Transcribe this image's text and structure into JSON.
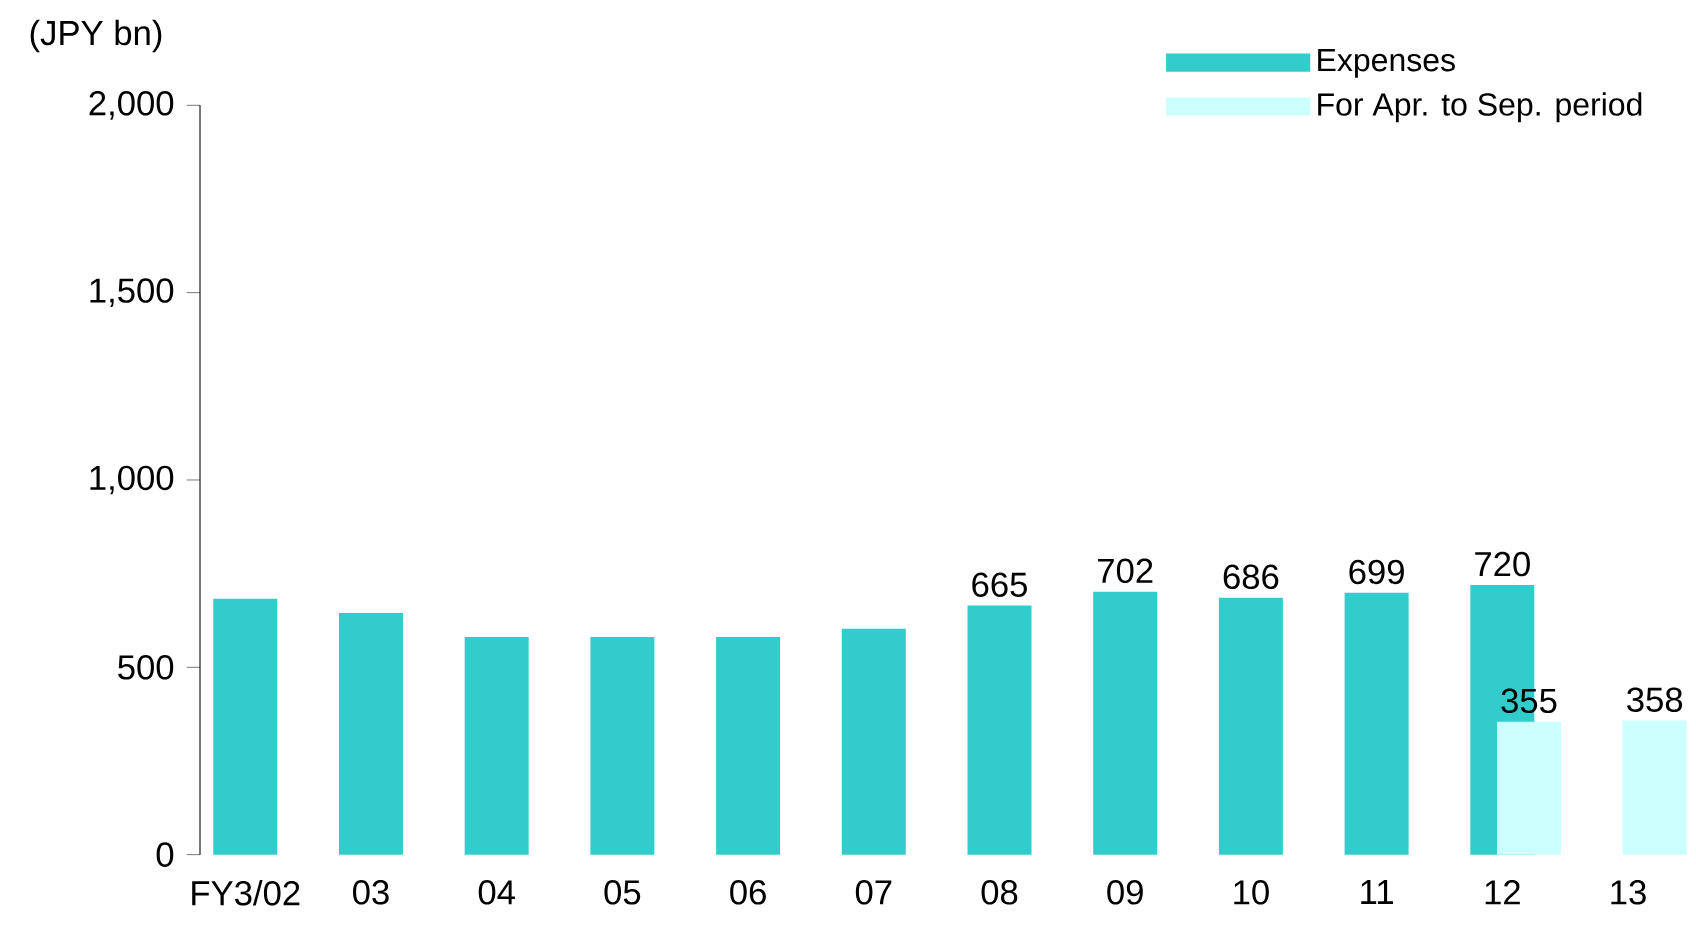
{
  "chart_data": {
    "type": "bar",
    "ylabel": "(JPY bn)",
    "categories": [
      "FY3/02",
      "03",
      "04",
      "05",
      "06",
      "07",
      "08",
      "09",
      "10",
      "11",
      "12",
      "13"
    ],
    "series": [
      {
        "name": "Expenses",
        "color": "#33cccc",
        "values": [
          683,
          645,
          581,
          581,
          581,
          603,
          665,
          702,
          686,
          699,
          720,
          null
        ],
        "value_labels": [
          null,
          null,
          null,
          null,
          null,
          null,
          "665",
          "702",
          "686",
          "699",
          "720",
          null
        ]
      },
      {
        "name": "For Apr. to Sep. period",
        "color": "#ccffff",
        "values": [
          null,
          null,
          null,
          null,
          null,
          null,
          null,
          null,
          null,
          null,
          355,
          358
        ],
        "value_labels": [
          null,
          null,
          null,
          null,
          null,
          null,
          null,
          null,
          null,
          null,
          "355",
          "358"
        ]
      }
    ],
    "ylim": [
      0,
      2000
    ],
    "yticks": [
      0,
      500,
      {
        "value": 1000,
        "label": "1,000"
      },
      {
        "value": 1500,
        "label": "1,500"
      },
      {
        "value": 2000,
        "label": "2,000"
      }
    ],
    "legend": "top right"
  }
}
